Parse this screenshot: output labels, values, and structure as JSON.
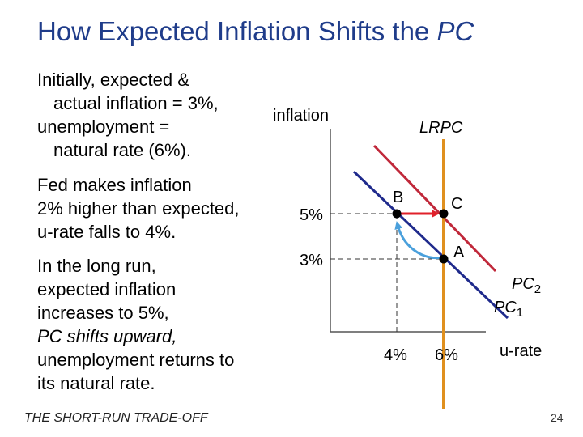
{
  "slide": {
    "title_main": "How Expected Inflation Shifts the ",
    "title_italic": "PC",
    "footer": "THE SHORT-RUN TRADE-OFF",
    "page_number": "24"
  },
  "paragraphs": {
    "p1": [
      "Initially, expected &",
      "actual inflation = 3%,",
      "unemployment =",
      "natural rate (6%)."
    ],
    "p2": [
      "Fed makes inflation",
      "2% higher than expected,",
      "u-rate falls to 4%."
    ],
    "p3": [
      "In the long run,",
      "expected inflation",
      "increases to 5%,",
      "PC shifts upward,",
      "unemployment returns to",
      "its natural rate."
    ]
  },
  "diagram": {
    "y_axis_label": "inflation",
    "x_axis_label": "u-rate",
    "lrpc_label": "LRPC",
    "pc1_label": "PC",
    "pc1_sub": "1",
    "pc2_label": "PC",
    "pc2_sub": "2",
    "y_ticks": [
      "5%",
      "3%"
    ],
    "x_ticks": [
      "4%",
      "6%"
    ],
    "points": {
      "a": "A",
      "b": "B",
      "c": "C"
    },
    "colors": {
      "pc1": "#1f2a8c",
      "pc2": "#c0283a",
      "lrpc": "#e0901e",
      "arrow_red": "#e0202a",
      "arrow_blue": "#4aa0dc"
    }
  }
}
